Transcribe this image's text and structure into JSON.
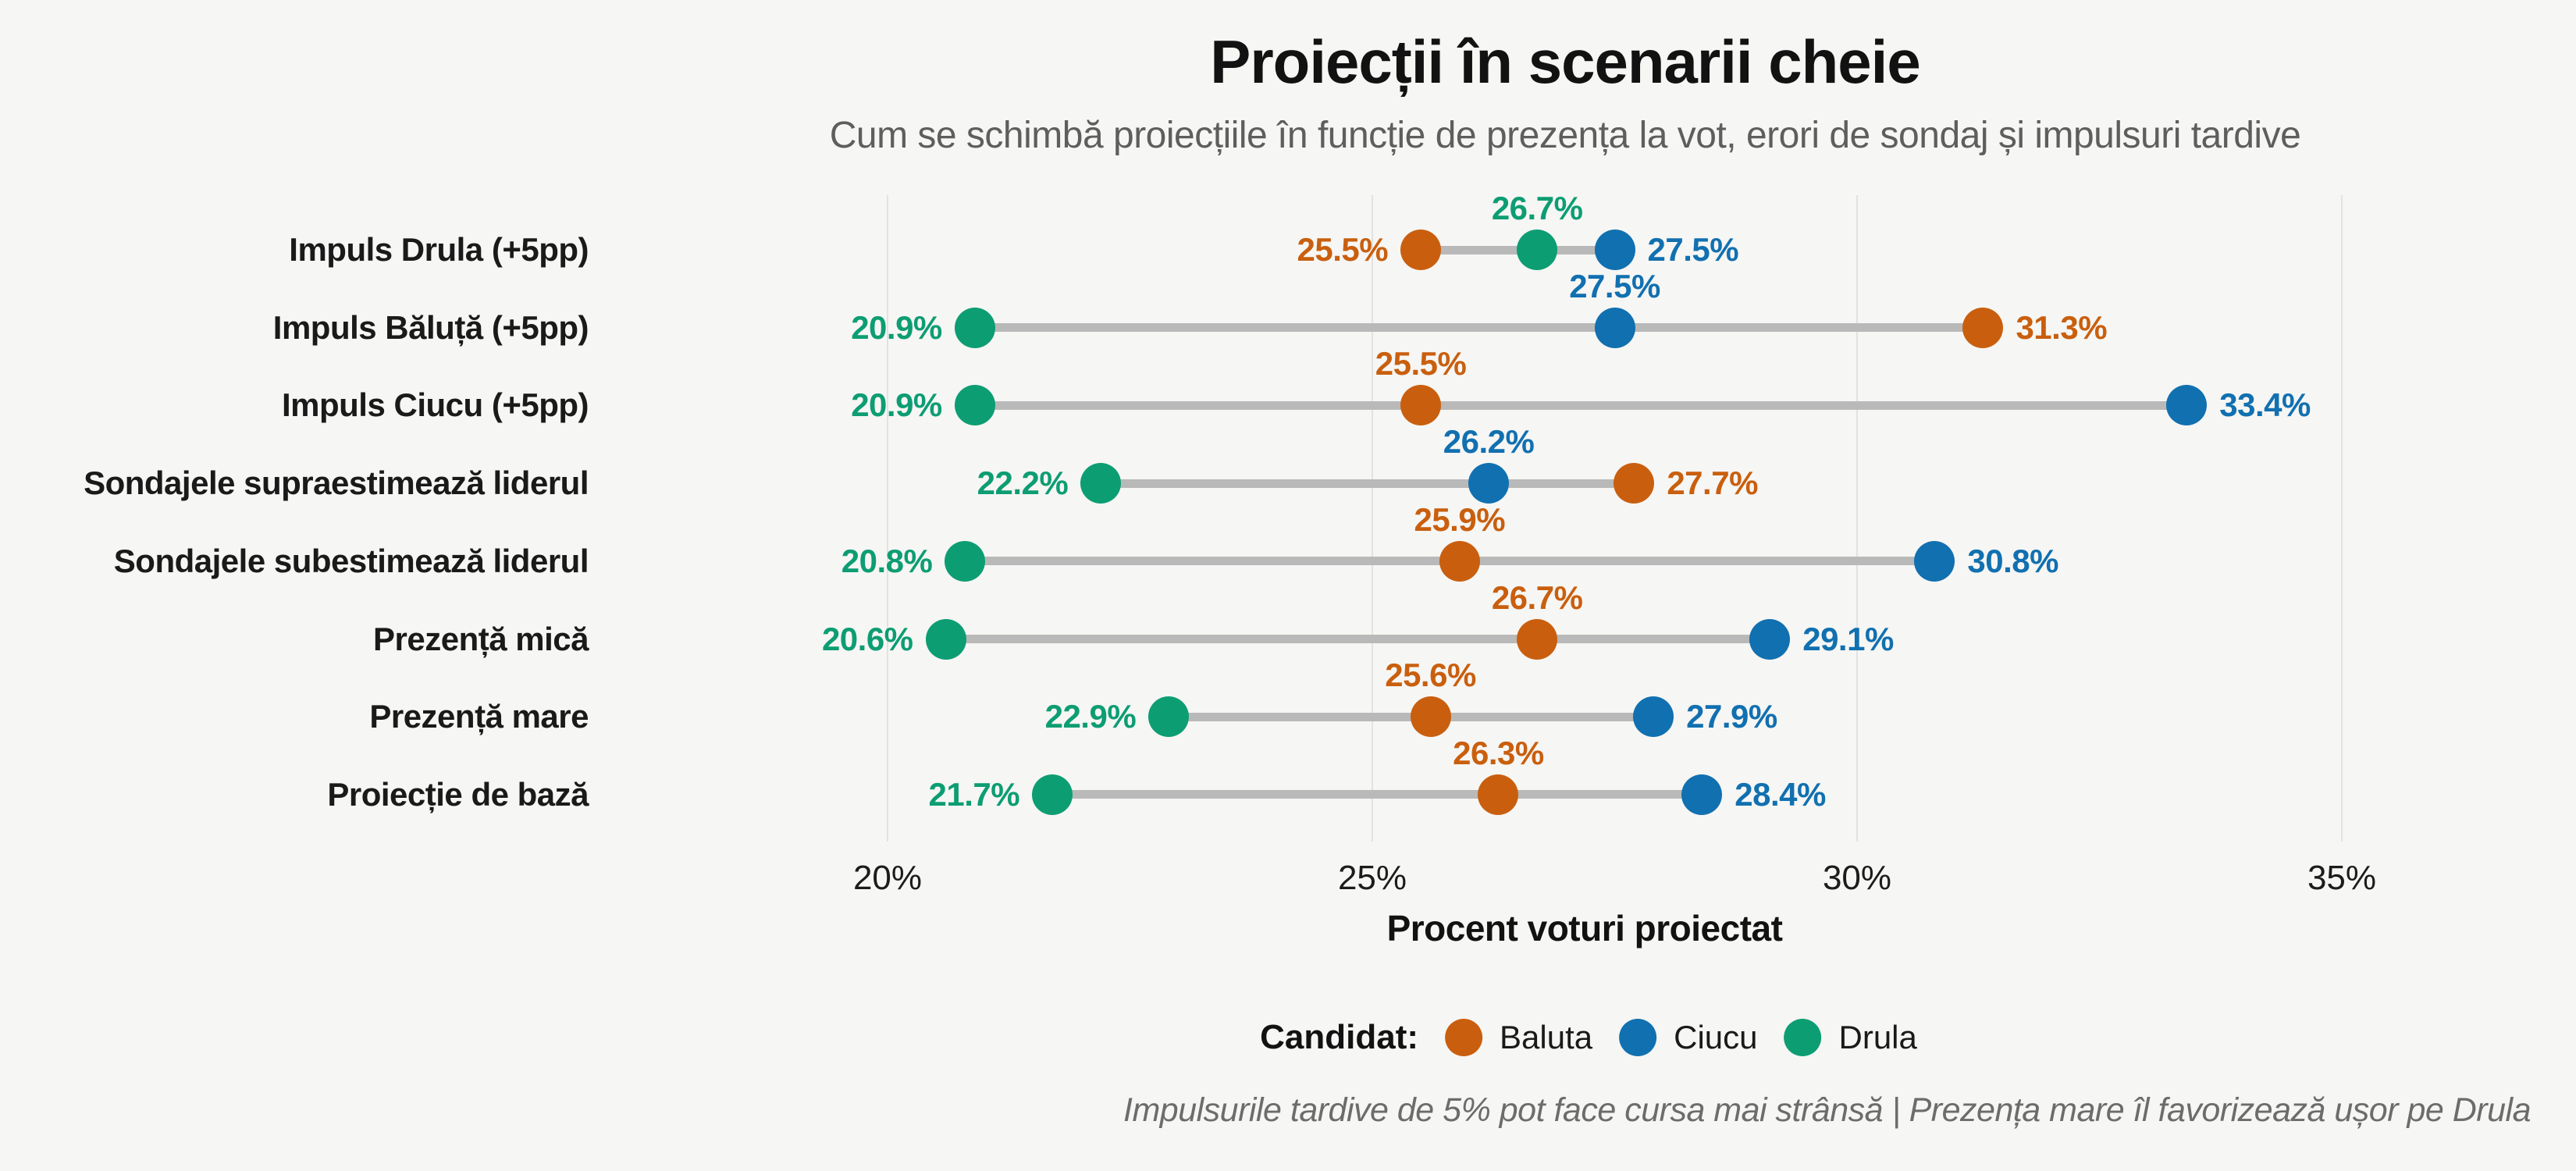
{
  "chart_data": {
    "type": "dumbbell-dot",
    "title": "Proiecții în scenarii cheie",
    "subtitle": "Cum se schimbă proiecțiile în funcție de prezența la vot, erori de sondaj și impulsuri tardive",
    "xlabel": "Procent voturi proiectat",
    "x_ticks": [
      {
        "label": "20%",
        "value": 20
      },
      {
        "label": "25%",
        "value": 25
      },
      {
        "label": "30%",
        "value": 30
      },
      {
        "label": "35%",
        "value": 35
      }
    ],
    "xlim": [
      19.7,
      35.4
    ],
    "grid": true,
    "value_suffix": "%",
    "colors": {
      "Baluta": "#c95f0e",
      "Ciucu": "#1170b0",
      "Drula": "#0d9d73"
    },
    "rows": [
      {
        "label": "Impuls Drula (+5pp)",
        "points": [
          {
            "candidate": "Baluta",
            "value": 25.5
          },
          {
            "candidate": "Ciucu",
            "value": 27.5
          },
          {
            "candidate": "Drula",
            "value": 26.7
          }
        ]
      },
      {
        "label": "Impuls Băluță (+5pp)",
        "points": [
          {
            "candidate": "Baluta",
            "value": 31.3
          },
          {
            "candidate": "Ciucu",
            "value": 27.5
          },
          {
            "candidate": "Drula",
            "value": 20.9
          }
        ]
      },
      {
        "label": "Impuls Ciucu (+5pp)",
        "points": [
          {
            "candidate": "Baluta",
            "value": 25.5
          },
          {
            "candidate": "Ciucu",
            "value": 33.4
          },
          {
            "candidate": "Drula",
            "value": 20.9
          }
        ]
      },
      {
        "label": "Sondajele supraestimează liderul",
        "points": [
          {
            "candidate": "Baluta",
            "value": 27.7
          },
          {
            "candidate": "Ciucu",
            "value": 26.2
          },
          {
            "candidate": "Drula",
            "value": 22.2
          }
        ]
      },
      {
        "label": "Sondajele subestimează liderul",
        "points": [
          {
            "candidate": "Baluta",
            "value": 25.9
          },
          {
            "candidate": "Ciucu",
            "value": 30.8
          },
          {
            "candidate": "Drula",
            "value": 20.8
          }
        ]
      },
      {
        "label": "Prezență mică",
        "points": [
          {
            "candidate": "Baluta",
            "value": 26.7
          },
          {
            "candidate": "Ciucu",
            "value": 29.1
          },
          {
            "candidate": "Drula",
            "value": 20.6
          }
        ]
      },
      {
        "label": "Prezență mare",
        "points": [
          {
            "candidate": "Baluta",
            "value": 25.6
          },
          {
            "candidate": "Ciucu",
            "value": 27.9
          },
          {
            "candidate": "Drula",
            "value": 22.9
          }
        ]
      },
      {
        "label": "Proiecție de bază",
        "points": [
          {
            "candidate": "Baluta",
            "value": 26.3
          },
          {
            "candidate": "Ciucu",
            "value": 28.4
          },
          {
            "candidate": "Drula",
            "value": 21.7
          }
        ]
      }
    ],
    "legend_position": "bottom"
  },
  "legend": {
    "title": "Candidat:",
    "items": [
      {
        "name": "Baluta",
        "color": "#c95f0e"
      },
      {
        "name": "Ciucu",
        "color": "#1170b0"
      },
      {
        "name": "Drula",
        "color": "#0d9d73"
      }
    ]
  },
  "footer": "Impulsurile tardive de 5% pot face cursa mai strânsă | Prezența mare îl favorizează ușor pe Drula"
}
